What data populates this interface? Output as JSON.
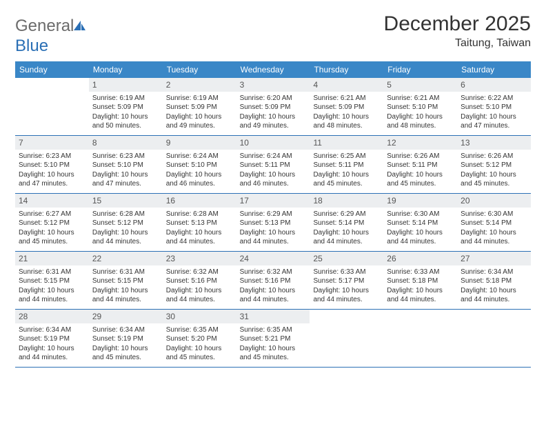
{
  "logo": {
    "part1": "General",
    "part2": "Blue"
  },
  "title": "December 2025",
  "location": "Taitung, Taiwan",
  "colors": {
    "header_bg": "#3a87c7",
    "header_text": "#ffffff",
    "daynum_bg": "#eceef0",
    "border": "#2a6fb5",
    "logo_grey": "#6b6b6b",
    "logo_blue": "#2a6fb5"
  },
  "dayNames": [
    "Sunday",
    "Monday",
    "Tuesday",
    "Wednesday",
    "Thursday",
    "Friday",
    "Saturday"
  ],
  "weeks": [
    [
      {
        "n": "",
        "sr": "",
        "ss": "",
        "dl": ""
      },
      {
        "n": "1",
        "sr": "Sunrise: 6:19 AM",
        "ss": "Sunset: 5:09 PM",
        "dl": "Daylight: 10 hours and 50 minutes."
      },
      {
        "n": "2",
        "sr": "Sunrise: 6:19 AM",
        "ss": "Sunset: 5:09 PM",
        "dl": "Daylight: 10 hours and 49 minutes."
      },
      {
        "n": "3",
        "sr": "Sunrise: 6:20 AM",
        "ss": "Sunset: 5:09 PM",
        "dl": "Daylight: 10 hours and 49 minutes."
      },
      {
        "n": "4",
        "sr": "Sunrise: 6:21 AM",
        "ss": "Sunset: 5:09 PM",
        "dl": "Daylight: 10 hours and 48 minutes."
      },
      {
        "n": "5",
        "sr": "Sunrise: 6:21 AM",
        "ss": "Sunset: 5:10 PM",
        "dl": "Daylight: 10 hours and 48 minutes."
      },
      {
        "n": "6",
        "sr": "Sunrise: 6:22 AM",
        "ss": "Sunset: 5:10 PM",
        "dl": "Daylight: 10 hours and 47 minutes."
      }
    ],
    [
      {
        "n": "7",
        "sr": "Sunrise: 6:23 AM",
        "ss": "Sunset: 5:10 PM",
        "dl": "Daylight: 10 hours and 47 minutes."
      },
      {
        "n": "8",
        "sr": "Sunrise: 6:23 AM",
        "ss": "Sunset: 5:10 PM",
        "dl": "Daylight: 10 hours and 47 minutes."
      },
      {
        "n": "9",
        "sr": "Sunrise: 6:24 AM",
        "ss": "Sunset: 5:10 PM",
        "dl": "Daylight: 10 hours and 46 minutes."
      },
      {
        "n": "10",
        "sr": "Sunrise: 6:24 AM",
        "ss": "Sunset: 5:11 PM",
        "dl": "Daylight: 10 hours and 46 minutes."
      },
      {
        "n": "11",
        "sr": "Sunrise: 6:25 AM",
        "ss": "Sunset: 5:11 PM",
        "dl": "Daylight: 10 hours and 45 minutes."
      },
      {
        "n": "12",
        "sr": "Sunrise: 6:26 AM",
        "ss": "Sunset: 5:11 PM",
        "dl": "Daylight: 10 hours and 45 minutes."
      },
      {
        "n": "13",
        "sr": "Sunrise: 6:26 AM",
        "ss": "Sunset: 5:12 PM",
        "dl": "Daylight: 10 hours and 45 minutes."
      }
    ],
    [
      {
        "n": "14",
        "sr": "Sunrise: 6:27 AM",
        "ss": "Sunset: 5:12 PM",
        "dl": "Daylight: 10 hours and 45 minutes."
      },
      {
        "n": "15",
        "sr": "Sunrise: 6:28 AM",
        "ss": "Sunset: 5:12 PM",
        "dl": "Daylight: 10 hours and 44 minutes."
      },
      {
        "n": "16",
        "sr": "Sunrise: 6:28 AM",
        "ss": "Sunset: 5:13 PM",
        "dl": "Daylight: 10 hours and 44 minutes."
      },
      {
        "n": "17",
        "sr": "Sunrise: 6:29 AM",
        "ss": "Sunset: 5:13 PM",
        "dl": "Daylight: 10 hours and 44 minutes."
      },
      {
        "n": "18",
        "sr": "Sunrise: 6:29 AM",
        "ss": "Sunset: 5:14 PM",
        "dl": "Daylight: 10 hours and 44 minutes."
      },
      {
        "n": "19",
        "sr": "Sunrise: 6:30 AM",
        "ss": "Sunset: 5:14 PM",
        "dl": "Daylight: 10 hours and 44 minutes."
      },
      {
        "n": "20",
        "sr": "Sunrise: 6:30 AM",
        "ss": "Sunset: 5:14 PM",
        "dl": "Daylight: 10 hours and 44 minutes."
      }
    ],
    [
      {
        "n": "21",
        "sr": "Sunrise: 6:31 AM",
        "ss": "Sunset: 5:15 PM",
        "dl": "Daylight: 10 hours and 44 minutes."
      },
      {
        "n": "22",
        "sr": "Sunrise: 6:31 AM",
        "ss": "Sunset: 5:15 PM",
        "dl": "Daylight: 10 hours and 44 minutes."
      },
      {
        "n": "23",
        "sr": "Sunrise: 6:32 AM",
        "ss": "Sunset: 5:16 PM",
        "dl": "Daylight: 10 hours and 44 minutes."
      },
      {
        "n": "24",
        "sr": "Sunrise: 6:32 AM",
        "ss": "Sunset: 5:16 PM",
        "dl": "Daylight: 10 hours and 44 minutes."
      },
      {
        "n": "25",
        "sr": "Sunrise: 6:33 AM",
        "ss": "Sunset: 5:17 PM",
        "dl": "Daylight: 10 hours and 44 minutes."
      },
      {
        "n": "26",
        "sr": "Sunrise: 6:33 AM",
        "ss": "Sunset: 5:18 PM",
        "dl": "Daylight: 10 hours and 44 minutes."
      },
      {
        "n": "27",
        "sr": "Sunrise: 6:34 AM",
        "ss": "Sunset: 5:18 PM",
        "dl": "Daylight: 10 hours and 44 minutes."
      }
    ],
    [
      {
        "n": "28",
        "sr": "Sunrise: 6:34 AM",
        "ss": "Sunset: 5:19 PM",
        "dl": "Daylight: 10 hours and 44 minutes."
      },
      {
        "n": "29",
        "sr": "Sunrise: 6:34 AM",
        "ss": "Sunset: 5:19 PM",
        "dl": "Daylight: 10 hours and 45 minutes."
      },
      {
        "n": "30",
        "sr": "Sunrise: 6:35 AM",
        "ss": "Sunset: 5:20 PM",
        "dl": "Daylight: 10 hours and 45 minutes."
      },
      {
        "n": "31",
        "sr": "Sunrise: 6:35 AM",
        "ss": "Sunset: 5:21 PM",
        "dl": "Daylight: 10 hours and 45 minutes."
      },
      {
        "n": "",
        "sr": "",
        "ss": "",
        "dl": ""
      },
      {
        "n": "",
        "sr": "",
        "ss": "",
        "dl": ""
      },
      {
        "n": "",
        "sr": "",
        "ss": "",
        "dl": ""
      }
    ]
  ]
}
